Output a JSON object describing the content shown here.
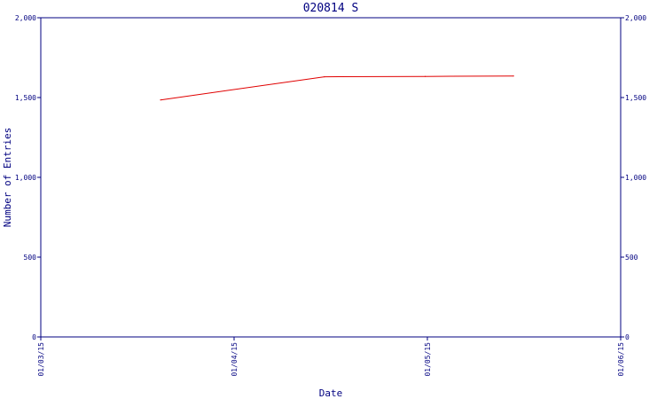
{
  "chart_data": {
    "type": "line",
    "title": "020814 S",
    "xlabel": "Date",
    "ylabel": "Number of Entries",
    "x_ticks": [
      "01/03/15",
      "01/04/15",
      "01/05/15",
      "01/06/15"
    ],
    "y_ticks": [
      "0",
      "500",
      "1,000",
      "1,500",
      "2,000"
    ],
    "xlim": [
      "2015-03-01",
      "2015-06-01"
    ],
    "ylim": [
      0,
      2000
    ],
    "grid": false,
    "colors": {
      "axis": "#000080",
      "line": "#e00000"
    },
    "series": [
      {
        "x": [
          "2015-03-20",
          "2015-04-15",
          "2015-05-01",
          "2015-05-15"
        ],
        "values": [
          1485,
          1630,
          1632,
          1635
        ]
      }
    ]
  }
}
